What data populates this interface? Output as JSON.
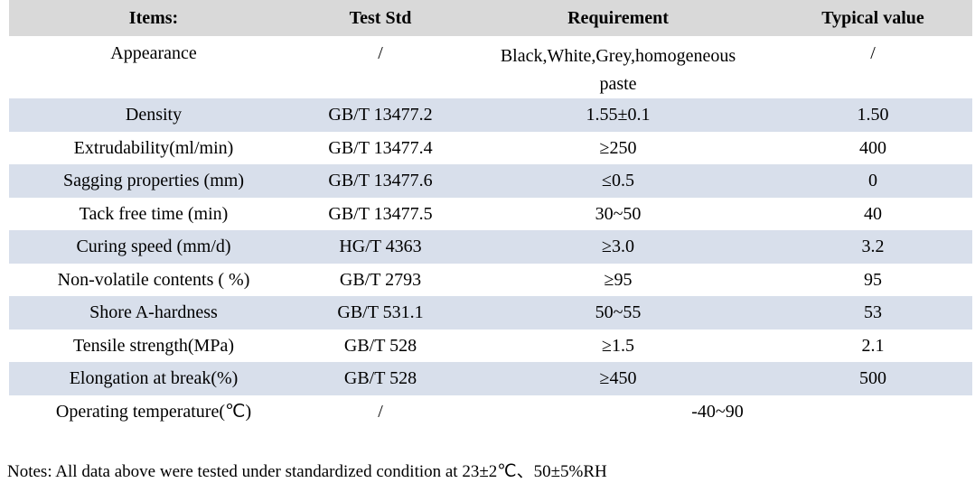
{
  "colors": {
    "header_bg": "#d9d9d9",
    "stripe_bg": "#d8dfeb",
    "text": "#000000"
  },
  "table": {
    "headers": [
      "Items:",
      "Test Std",
      "Requirement",
      "Typical value"
    ],
    "rows": [
      {
        "item": "Appearance",
        "test_std": "/",
        "requirement": "Black,White,Grey,homogeneous paste",
        "typical": "/"
      },
      {
        "item": "Density",
        "test_std": "GB/T 13477.2",
        "requirement": "1.55±0.1",
        "typical": "1.50"
      },
      {
        "item": "Extrudability(ml/min)",
        "test_std": "GB/T 13477.4",
        "requirement": "≥250",
        "typical": "400"
      },
      {
        "item": "Sagging properties (mm)",
        "test_std": "GB/T 13477.6",
        "requirement": "≤0.5",
        "typical": "0"
      },
      {
        "item": "Tack free time (min)",
        "test_std": "GB/T 13477.5",
        "requirement": "30~50",
        "typical": "40"
      },
      {
        "item": "Curing speed (mm/d)",
        "test_std": "HG/T 4363",
        "requirement": "≥3.0",
        "typical": "3.2"
      },
      {
        "item": "Non-volatile contents ( %)",
        "test_std": "GB/T 2793",
        "requirement": "≥95",
        "typical": "95"
      },
      {
        "item": "Shore A-hardness",
        "test_std": "GB/T 531.1",
        "requirement": "50~55",
        "typical": "53"
      },
      {
        "item": "Tensile strength(MPa)",
        "test_std": "GB/T 528",
        "requirement": "≥1.5",
        "typical": "2.1"
      },
      {
        "item": "Elongation at break(%)",
        "test_std": "GB/T 528",
        "requirement": "≥450",
        "typical": "500"
      },
      {
        "item": "Operating temperature(℃)",
        "test_std": "/",
        "requirement": "-40~90"
      }
    ]
  },
  "notes": "Notes: All data above were tested under standardized condition at 23±2℃、50±5%RH"
}
